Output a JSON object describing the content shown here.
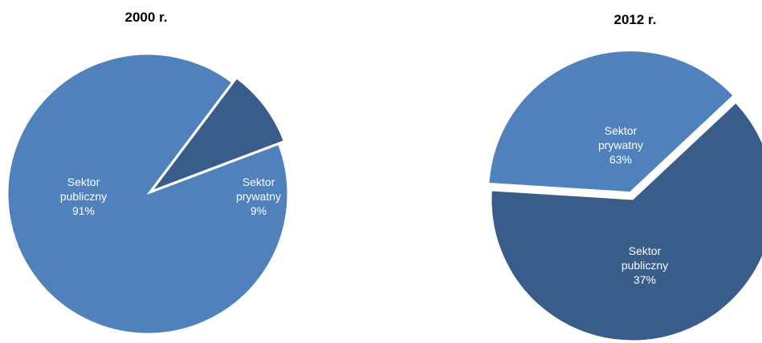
{
  "chart_data": [
    {
      "type": "pie",
      "title": "2000 r.",
      "slices": [
        {
          "name": "Sektor",
          "name2": "publiczny",
          "value": 91,
          "label": "91%",
          "color": "#4f81bd"
        },
        {
          "name": "Sektor",
          "name2": "prywatny",
          "value": 9,
          "label": "9%",
          "color": "#385d8a"
        }
      ]
    },
    {
      "type": "pie",
      "title": "2012 r.",
      "slices": [
        {
          "name": "Sektor",
          "name2": "prywatny",
          "value": 63,
          "label": "63%",
          "color": "#385d8a"
        },
        {
          "name": "Sektor",
          "name2": "publiczny",
          "value": 37,
          "label": "37%",
          "color": "#4f81bd"
        }
      ]
    }
  ]
}
